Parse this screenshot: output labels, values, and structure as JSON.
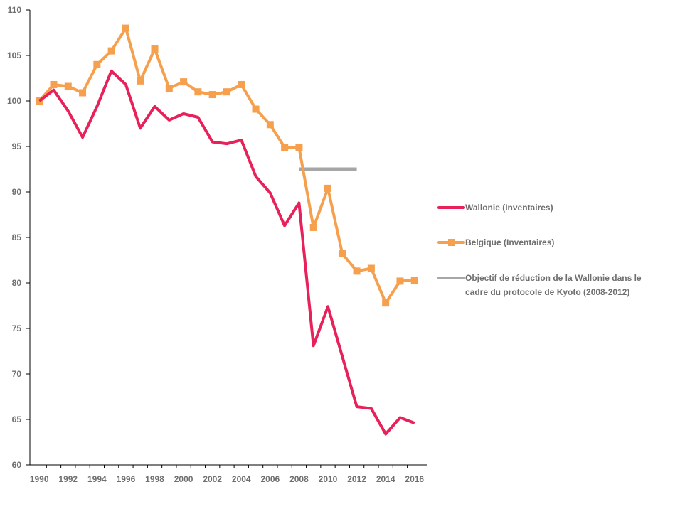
{
  "chart_data": {
    "type": "line",
    "x": [
      1990,
      1991,
      1992,
      1993,
      1994,
      1995,
      1996,
      1997,
      1998,
      1999,
      2000,
      2001,
      2002,
      2003,
      2004,
      2005,
      2006,
      2007,
      2008,
      2009,
      2010,
      2011,
      2012,
      2013,
      2014,
      2015,
      2016
    ],
    "x_tick_labels": [
      "1990",
      "1992",
      "1994",
      "1996",
      "1998",
      "2000",
      "2002",
      "2004",
      "2006",
      "2008",
      "2010",
      "2012",
      "2014",
      "2016"
    ],
    "y_tick_labels": [
      "60",
      "65",
      "70",
      "75",
      "80",
      "85",
      "90",
      "95",
      "100",
      "105",
      "110"
    ],
    "ylim": [
      60,
      110
    ],
    "xlim": [
      1989.35,
      2016.85
    ],
    "grid": false,
    "legend_position": "right",
    "series": [
      {
        "name": "Wallonie (Inventaires)",
        "color": "#e8215a",
        "marker": "none",
        "values": [
          100.0,
          101.2,
          98.9,
          96.0,
          99.4,
          103.3,
          101.8,
          97.0,
          99.4,
          97.9,
          98.6,
          98.2,
          95.5,
          95.3,
          95.7,
          91.7,
          89.9,
          86.3,
          88.8,
          73.1,
          77.4,
          71.9,
          66.4,
          66.2,
          63.4,
          65.2,
          64.6
        ]
      },
      {
        "name": "Belgique (Inventaires)",
        "color": "#f6a04d",
        "marker": "square",
        "values": [
          100.0,
          101.8,
          101.6,
          100.9,
          104.0,
          105.5,
          108.0,
          102.2,
          105.7,
          101.4,
          102.1,
          101.0,
          100.7,
          101.0,
          101.8,
          99.1,
          97.4,
          94.9,
          94.9,
          86.1,
          90.4,
          83.2,
          81.3,
          81.6,
          77.8,
          80.2,
          80.3
        ]
      },
      {
        "name": "Objectif de réduction de la Wallonie dans le cadre du protocole de Kyoto (2008-2012)",
        "color": "#a6a6a6",
        "marker": "none",
        "x": [
          2008,
          2012
        ],
        "values": [
          92.5,
          92.5
        ]
      }
    ]
  },
  "legend": {
    "wallonie": "Wallonie (Inventaires)",
    "belgique": "Belgique (Inventaires)",
    "objectif_line1": "Objectif de réduction de la Wallonie dans le",
    "objectif_line2": "cadre du protocole de Kyoto (2008-2012)"
  }
}
